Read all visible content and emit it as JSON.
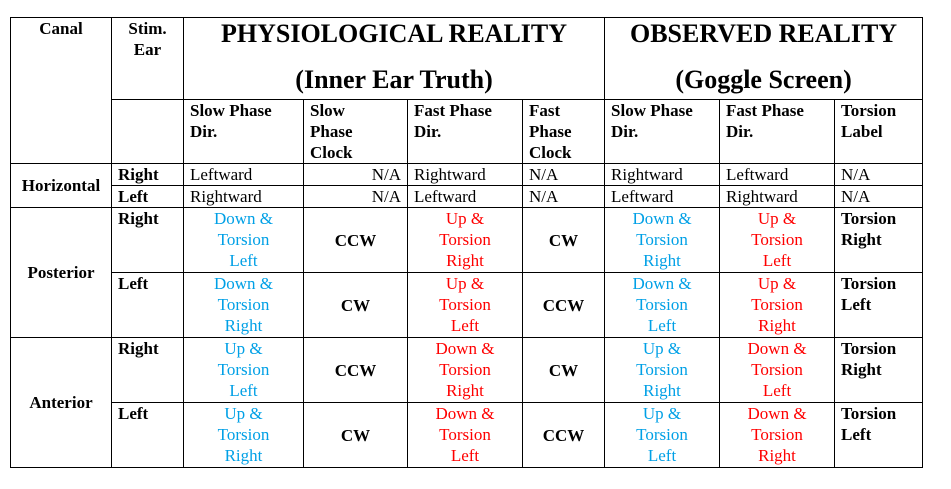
{
  "headers": {
    "canal": "Canal",
    "stim_ear": [
      "Stim.",
      "Ear"
    ],
    "physiological": [
      "PHYSIOLOGICAL REALITY",
      "(Inner Ear Truth)"
    ],
    "observed": [
      "OBSERVED REALITY",
      "(Goggle Screen)"
    ],
    "sub": [
      [
        "Slow Phase",
        "Dir."
      ],
      [
        "Slow",
        "Phase",
        "Clock"
      ],
      [
        "Fast Phase",
        "Dir."
      ],
      [
        "Fast",
        "Phase",
        "Clock"
      ],
      [
        "Slow Phase",
        "Dir."
      ],
      [
        "Fast Phase",
        "Dir."
      ],
      [
        "Torsion",
        "Label"
      ]
    ]
  },
  "groups": [
    {
      "canal": "Horizontal",
      "rows": [
        {
          "ear": "Right",
          "cells": [
            "Leftward",
            "N/A",
            "Rightward",
            "N/A",
            "Rightward",
            "Leftward",
            "N/A"
          ]
        },
        {
          "ear": "Left",
          "cells": [
            "Rightward",
            "N/A",
            "Leftward",
            "N/A",
            "Leftward",
            "Rightward",
            "N/A"
          ]
        }
      ]
    },
    {
      "canal": "Posterior",
      "rows": [
        {
          "ear": "Right",
          "slow": [
            "Down &",
            "Torsion",
            "Left"
          ],
          "slow_clock": "CCW",
          "fast": [
            "Up &",
            "Torsion",
            "Right"
          ],
          "fast_clock": "CW",
          "obs_slow": [
            "Down &",
            "Torsion",
            "Right"
          ],
          "obs_fast": [
            "Up &",
            "Torsion",
            "Left"
          ],
          "label": [
            "Torsion",
            "Right"
          ]
        },
        {
          "ear": "Left",
          "slow": [
            "Down &",
            "Torsion",
            "Right"
          ],
          "slow_clock": "CW",
          "fast": [
            "Up &",
            "Torsion",
            "Left"
          ],
          "fast_clock": "CCW",
          "obs_slow": [
            "Down &",
            "Torsion",
            "Left"
          ],
          "obs_fast": [
            "Up &",
            "Torsion",
            "Right"
          ],
          "label": [
            "Torsion",
            "Left"
          ]
        }
      ]
    },
    {
      "canal": "Anterior",
      "rows": [
        {
          "ear": "Right",
          "slow": [
            "Up &",
            "Torsion",
            "Left"
          ],
          "slow_clock": "CCW",
          "fast": [
            "Down &",
            "Torsion",
            "Right"
          ],
          "fast_clock": "CW",
          "obs_slow": [
            "Up &",
            "Torsion",
            "Right"
          ],
          "obs_fast": [
            "Down &",
            "Torsion",
            "Left"
          ],
          "label": [
            "Torsion",
            "Right"
          ]
        },
        {
          "ear": "Left",
          "slow": [
            "Up &",
            "Torsion",
            "Right"
          ],
          "slow_clock": "CW",
          "fast": [
            "Down &",
            "Torsion",
            "Left"
          ],
          "fast_clock": "CCW",
          "obs_slow": [
            "Up &",
            "Torsion",
            "Left"
          ],
          "obs_fast": [
            "Down &",
            "Torsion",
            "Right"
          ],
          "label": [
            "Torsion",
            "Left"
          ]
        }
      ]
    }
  ],
  "colors": {
    "slow_phase": "#00a0e6",
    "fast_phase": "#ff0000",
    "text": "#000000"
  }
}
